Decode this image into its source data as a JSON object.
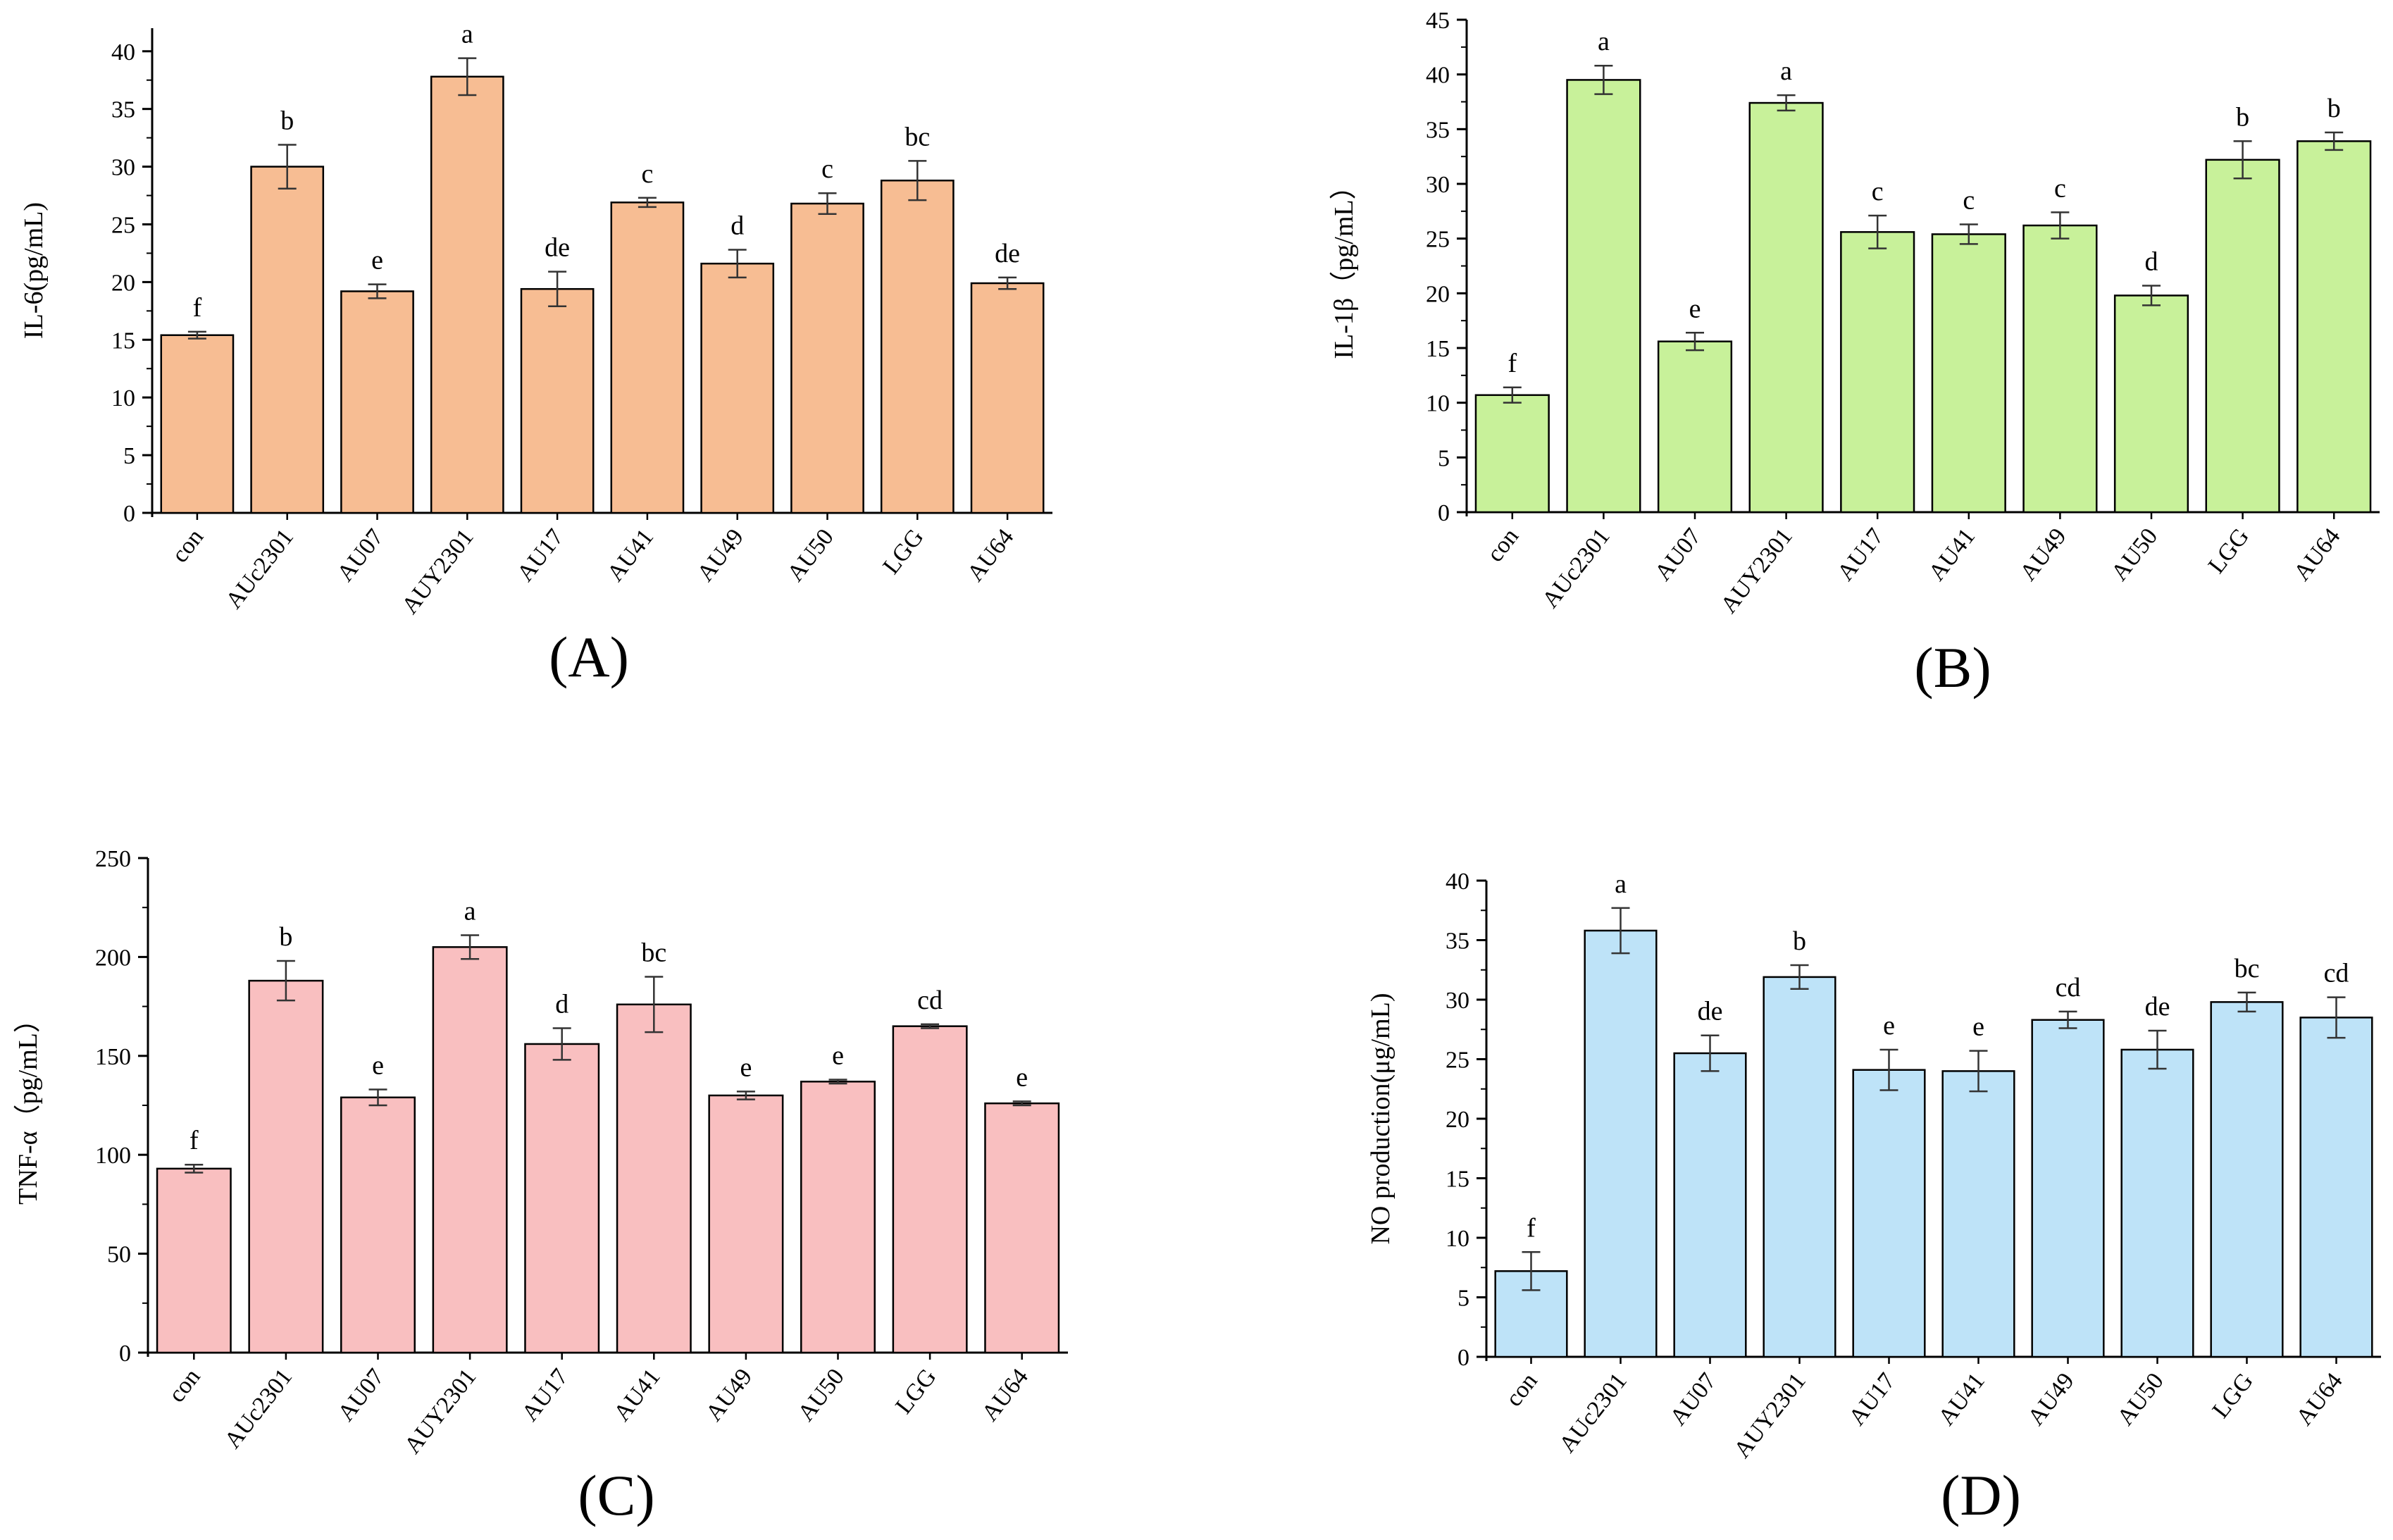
{
  "figure": {
    "description_labels": [
      "(A)",
      "(B)",
      "(C)",
      "(D)"
    ]
  },
  "chart_data": [
    {
      "type": "bar",
      "panel": "(A)",
      "ylabel": "IL-6(pg/mL)",
      "xlabel": "",
      "ylim": [
        0,
        42
      ],
      "yticks": [
        0,
        5,
        10,
        15,
        20,
        25,
        30,
        35,
        40
      ],
      "bar_color": "#F7BD93",
      "categories": [
        "con",
        "AUc2301",
        "AU07",
        "AUY2301",
        "AU17",
        "AU41",
        "AU49",
        "AU50",
        "LGG",
        "AU64"
      ],
      "values": [
        15.4,
        30.0,
        19.2,
        37.8,
        19.4,
        26.9,
        21.6,
        26.8,
        28.8,
        19.9
      ],
      "errors": [
        0.3,
        1.9,
        0.6,
        1.6,
        1.5,
        0.4,
        1.2,
        0.9,
        1.7,
        0.5
      ],
      "significance": [
        "f",
        "b",
        "e",
        "a",
        "de",
        "c",
        "d",
        "c",
        "bc",
        "de"
      ]
    },
    {
      "type": "bar",
      "panel": "(B)",
      "ylabel": "IL-1β（pg/mL）",
      "xlabel": "",
      "ylim": [
        0,
        45
      ],
      "yticks": [
        0,
        5,
        10,
        15,
        20,
        25,
        30,
        35,
        40,
        45
      ],
      "bar_color": "#C8F19A",
      "categories": [
        "con",
        "AUc2301",
        "AU07",
        "AUY2301",
        "AU17",
        "AU41",
        "AU49",
        "AU50",
        "LGG",
        "AU64"
      ],
      "values": [
        10.7,
        39.5,
        15.6,
        37.4,
        25.6,
        25.4,
        26.2,
        19.8,
        32.2,
        33.9
      ],
      "errors": [
        0.7,
        1.3,
        0.8,
        0.7,
        1.5,
        0.9,
        1.2,
        0.9,
        1.7,
        0.8
      ],
      "significance": [
        "f",
        "a",
        "e",
        "a",
        "c",
        "c",
        "c",
        "d",
        "b",
        "b"
      ]
    },
    {
      "type": "bar",
      "panel": "(C)",
      "ylabel": "TNF-α（pg/mL）",
      "xlabel": "",
      "ylim": [
        0,
        250
      ],
      "yticks": [
        0,
        50,
        100,
        150,
        200,
        250
      ],
      "bar_color": "#F9BFC0",
      "categories": [
        "con",
        "AUc2301",
        "AU07",
        "AUY2301",
        "AU17",
        "AU41",
        "AU49",
        "AU50",
        "LGG",
        "AU64"
      ],
      "values": [
        93,
        188,
        129,
        205,
        156,
        176,
        130,
        137,
        165,
        126
      ],
      "errors": [
        2,
        10,
        4,
        6,
        8,
        14,
        2,
        1,
        1,
        1
      ],
      "significance": [
        "f",
        "b",
        "e",
        "a",
        "d",
        "bc",
        "e",
        "e",
        "cd",
        "e"
      ]
    },
    {
      "type": "bar",
      "panel": "(D)",
      "ylabel": "NO production(μg/mL)",
      "xlabel": "",
      "ylim": [
        0,
        40
      ],
      "yticks": [
        0,
        5,
        10,
        15,
        20,
        25,
        30,
        35,
        40
      ],
      "bar_color": "#BEE3F8",
      "categories": [
        "con",
        "AUc2301",
        "AU07",
        "AUY2301",
        "AU17",
        "AU41",
        "AU49",
        "AU50",
        "LGG",
        "AU64"
      ],
      "values": [
        7.2,
        35.8,
        25.5,
        31.9,
        24.1,
        24.0,
        28.3,
        25.8,
        29.8,
        28.5
      ],
      "errors": [
        1.6,
        1.9,
        1.5,
        1.0,
        1.7,
        1.7,
        0.7,
        1.6,
        0.8,
        1.7
      ],
      "significance": [
        "f",
        "a",
        "de",
        "b",
        "e",
        "e",
        "cd",
        "de",
        "bc",
        "cd"
      ]
    }
  ]
}
